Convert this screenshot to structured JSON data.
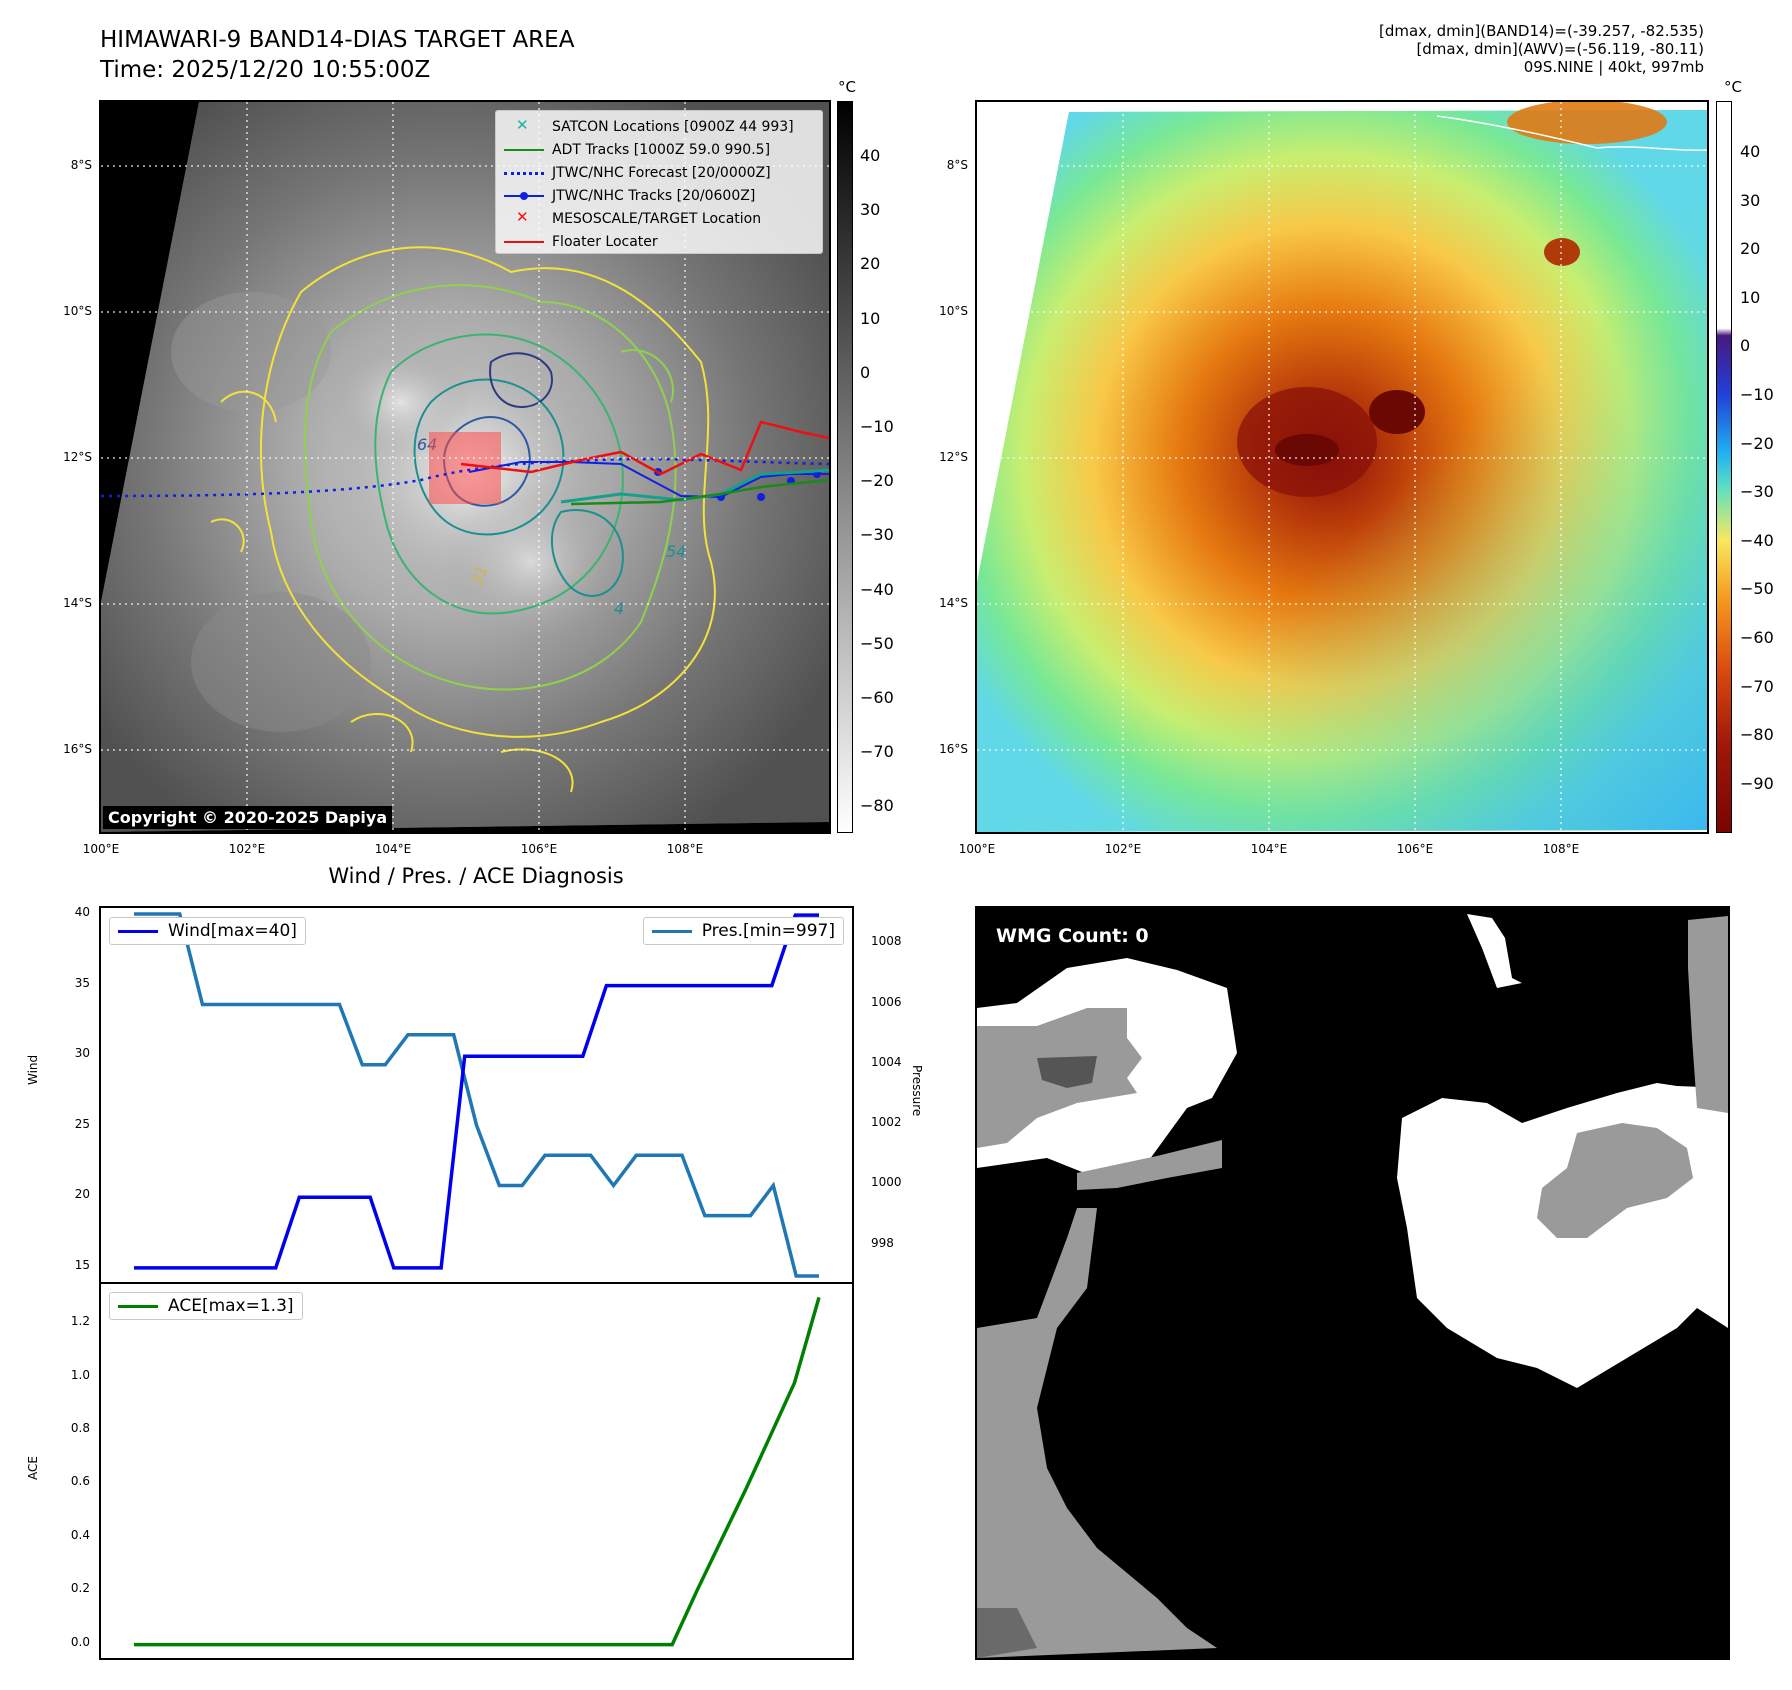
{
  "header": {
    "title_line1": "HIMAWARI-9 BAND14-DIAS TARGET AREA",
    "title_line2": "Time: 2025/12/20 10:55:00Z",
    "info_line1": "[dmax, dmin](BAND14)=(-39.257, -82.535)",
    "info_line2": "[dmax, dmin](AWV)=(-56.119, -80.11)",
    "info_line3": "09S.NINE | 40kt, 997mb"
  },
  "map": {
    "lat_labels": [
      "8°S",
      "10°S",
      "12°S",
      "14°S",
      "16°S"
    ],
    "lon_labels": [
      "100°E",
      "102°E",
      "104°E",
      "106°E",
      "108°E"
    ],
    "contour_labels": [
      "64",
      "31",
      "54",
      "4"
    ],
    "copyright": "Copyright © 2020-2025 Dapiya"
  },
  "legend": {
    "items": [
      {
        "label": "SATCON Locations [0900Z 44 993]",
        "color": "#17b4a0",
        "symbol": "x"
      },
      {
        "label": "ADT Tracks [1000Z 59.0 990.5]",
        "color": "#1a8a1a",
        "symbol": "line"
      },
      {
        "label": "JTWC/NHC Forecast [20/0000Z]",
        "color": "#1020e0",
        "symbol": "dotted"
      },
      {
        "label": "JTWC/NHC Tracks [20/0600Z]",
        "color": "#1020e0",
        "symbol": "line-dot"
      },
      {
        "label": "MESOSCALE/TARGET Location",
        "color": "#ff1010",
        "symbol": "x"
      },
      {
        "label": "Floater Locater",
        "color": "#ee1010",
        "symbol": "line"
      }
    ]
  },
  "colorbar_gray": {
    "unit": "°C",
    "ticks": [
      "40",
      "30",
      "20",
      "10",
      "0",
      "−10",
      "−20",
      "−30",
      "−40",
      "−50",
      "−60",
      "−70",
      "−80"
    ]
  },
  "colorbar_color": {
    "unit": "°C",
    "ticks": [
      "40",
      "30",
      "20",
      "10",
      "0",
      "−10",
      "−20",
      "−30",
      "−40",
      "−50",
      "−60",
      "−70",
      "−80",
      "−90"
    ]
  },
  "diagnosis": {
    "title": "Wind / Pres. / ACE Diagnosis",
    "wind_axis_label": "Wind",
    "pressure_axis_label": "Pressure",
    "ace_axis_label": "ACE",
    "wind_legend": "Wind[max=40]",
    "pres_legend": "Pres.[min=997]",
    "ace_legend": "ACE[max=1.3]",
    "wind_ticks": [
      "40",
      "35",
      "30",
      "25",
      "20",
      "15"
    ],
    "pres_ticks": [
      "1008",
      "1006",
      "1004",
      "1002",
      "1000",
      "998"
    ],
    "ace_ticks": [
      "1.2",
      "1.0",
      "0.8",
      "0.6",
      "0.4",
      "0.2",
      "0.0"
    ]
  },
  "wmg": {
    "badge": "WMG Count: 0"
  },
  "colors": {
    "wind": "#0000ee",
    "pressure": "#1f77b4",
    "ace": "#008000"
  },
  "chart_data": [
    {
      "type": "line",
      "title": "Wind / Pres. / ACE Diagnosis",
      "ylabel": "Wind",
      "ylim": [
        14,
        40.5
      ],
      "series": [
        {
          "name": "Wind[max=40]",
          "values": [
            15,
            15,
            15,
            15,
            15,
            15,
            15,
            20,
            20,
            20,
            20,
            15,
            15,
            15,
            30,
            30,
            30,
            30,
            30,
            30,
            35,
            35,
            35,
            35,
            35,
            35,
            35,
            35,
            40,
            40
          ]
        }
      ]
    },
    {
      "type": "line",
      "ylabel": "Pressure",
      "ylim": [
        996.8,
        1009.2
      ],
      "series": [
        {
          "name": "Pres.[min=997]",
          "values": [
            1009,
            1009,
            1009,
            1006,
            1006,
            1006,
            1006,
            1006,
            1006,
            1006,
            1004,
            1004,
            1005,
            1005,
            1005,
            1002,
            1000,
            1000,
            1001,
            1001,
            1001,
            1000,
            1001,
            1001,
            1001,
            999,
            999,
            999,
            1000,
            997,
            997
          ]
        }
      ]
    },
    {
      "type": "line",
      "ylabel": "ACE",
      "ylim": [
        -0.05,
        1.35
      ],
      "series": [
        {
          "name": "ACE[max=1.3]",
          "values": [
            0,
            0,
            0,
            0,
            0,
            0,
            0,
            0,
            0,
            0,
            0,
            0,
            0,
            0,
            0,
            0,
            0,
            0,
            0,
            0,
            0,
            0,
            0,
            0.2,
            0.39,
            0.58,
            0.78,
            0.98,
            1.3
          ]
        }
      ]
    }
  ]
}
